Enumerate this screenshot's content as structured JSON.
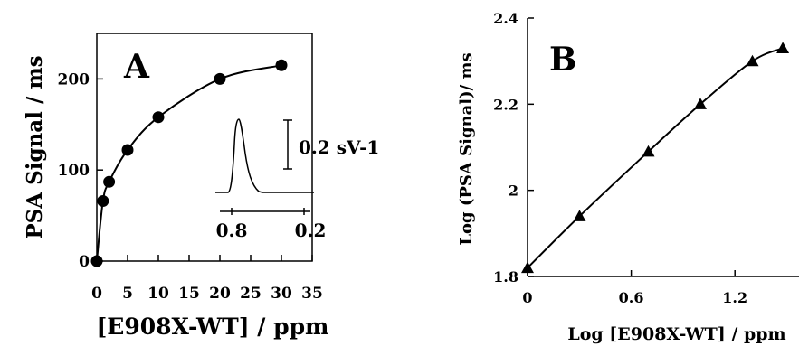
{
  "chart_data": [
    {
      "type": "scatter",
      "panel_label": "A",
      "xlabel": "[E908X-WT] / ppm",
      "ylabel": "PSA Signal / ms",
      "xlim": [
        0,
        35
      ],
      "ylim": [
        0,
        250
      ],
      "x_ticks": [
        0,
        5,
        10,
        15,
        20,
        25,
        30,
        35
      ],
      "y_ticks": [
        0,
        100,
        200
      ],
      "grid": false,
      "marker": "circle",
      "fit_curve": true,
      "x": [
        0,
        1,
        2,
        5,
        10,
        20,
        30
      ],
      "y": [
        0,
        66,
        87,
        122,
        158,
        200,
        215
      ],
      "inset": {
        "description": "peak",
        "scale_bar_label": "0.2 sV-1",
        "x_tick_labels": [
          "0.8",
          "0.2"
        ]
      }
    },
    {
      "type": "scatter",
      "panel_label": "B",
      "xlabel": "Log [E908X-WT] / ppm",
      "ylabel": "Log (PSA Signal)/ ms",
      "xlim": [
        0,
        1.5
      ],
      "ylim": [
        1.8,
        2.4
      ],
      "x_ticks": [
        0,
        0.6,
        1.2
      ],
      "y_ticks": [
        1.8,
        2,
        2.2,
        2.4
      ],
      "grid": false,
      "marker": "triangle",
      "fit_curve": true,
      "x": [
        0,
        0.301,
        0.699,
        1.0,
        1.301,
        1.477
      ],
      "y": [
        1.82,
        1.94,
        2.09,
        2.2,
        2.3,
        2.33
      ]
    }
  ]
}
